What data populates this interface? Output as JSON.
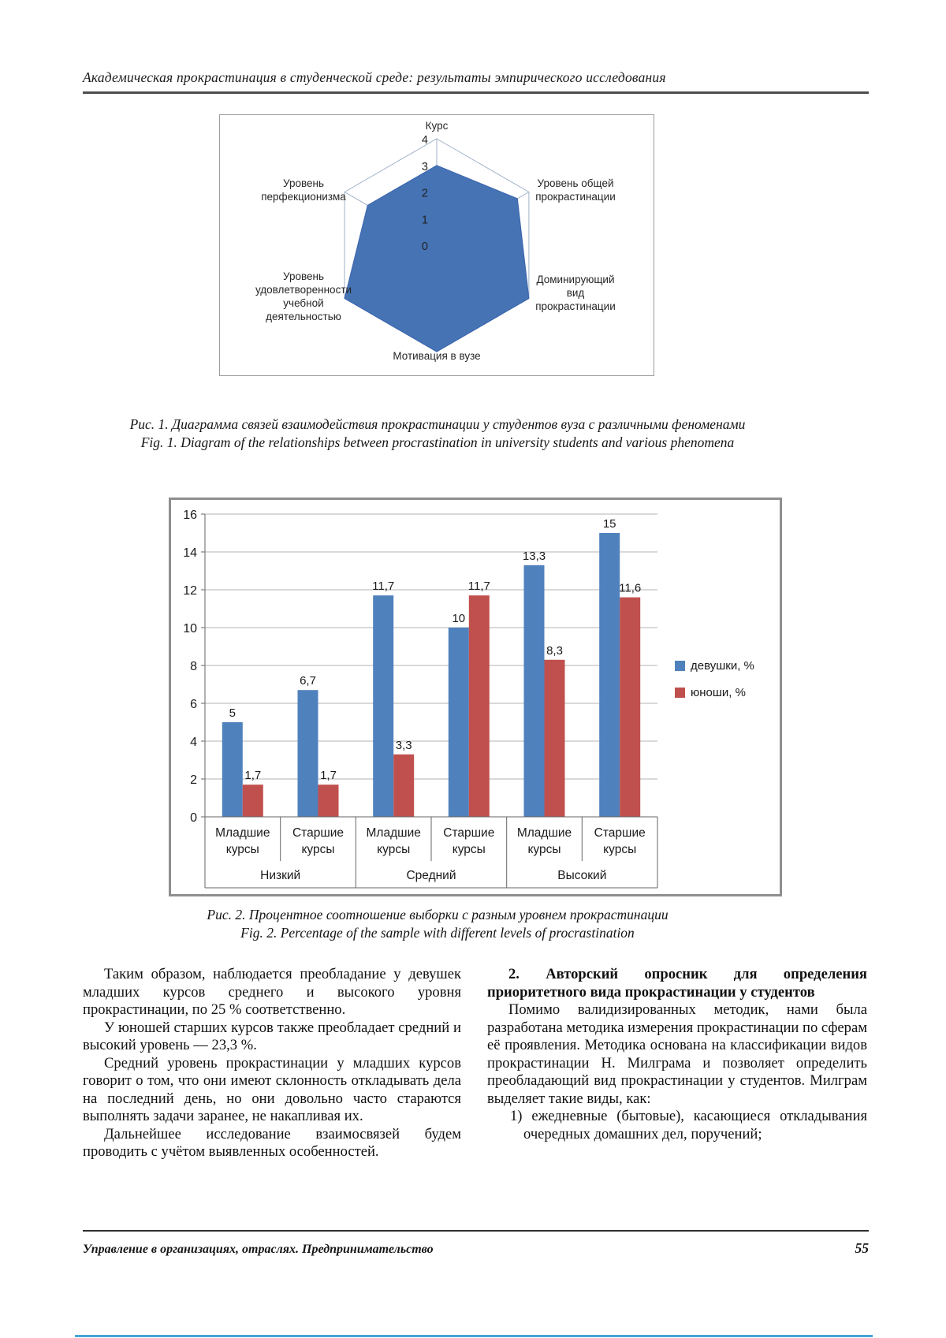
{
  "page": {
    "running_head": "Академическая прокрастинация в студенческой среде: результаты эмпирического исследования",
    "footer_left": "Управление в организациях, отраслях. Предпринимательство",
    "page_number": "55"
  },
  "fig1": {
    "caption_ru": "Рис. 1. Диаграмма связей взаимодействия прокрастинации у студентов вуза с различными феноменами",
    "caption_en": "Fig. 1. Diagram of the relationships between procrastination in university students and various phenomena"
  },
  "fig2": {
    "caption_ru": "Рис. 2. Процентное соотношение выборки с разным уровнем прокрастинации",
    "caption_en": "Fig. 2. Percentage of the sample with different levels of procrastination"
  },
  "body": {
    "left_paragraphs": [
      "Таким образом, наблюдается преобладание у девушек младших курсов среднего и высокого уровня прокрастинации, по 25 % соответственно.",
      "У юношей старших курсов также преобладает средний и высокий уровень — 23,3 %.",
      "Средний уровень прокрастинации у младших курсов говорит о том, что они имеют склонность откладывать дела на последний день, но они довольно часто стараются выполнять задачи заранее, не накапливая их.",
      "Дальнейшее исследование взаимосвязей будем проводить с учётом выявленных особенностей."
    ],
    "right_heading": "2. Авторский опросник для определения приоритетного вида прокрастинации у студентов",
    "right_paragraph": "Помимо валидизированных методик, нами была разработана методика измерения прокрастинации по сферам её проявления. Методика основана на классификации видов прокрастинации Н. Милграма и позволяет определить преобладающий вид прокрастинации у студентов. Милграм выделяет такие виды, как:",
    "right_list_item": "1) ежедневные (бытовые), касающиеся откладывания очередных домашних дел, поручений;"
  },
  "chart_data": [
    {
      "type": "radar",
      "axes": [
        "Курс",
        "Уровень общей прокрастинации",
        "Доминирующий вид прокрастинации",
        "Мотивация в вузе",
        "Уровень удовлетворенности учебной деятельностью",
        "Уровень перфекционизма"
      ],
      "values": [
        3,
        3.5,
        4,
        4,
        4,
        3
      ],
      "rmin": 0,
      "rmax": 4,
      "rticks": [
        0,
        1,
        2,
        3,
        4
      ],
      "fill_color": "#4573b4",
      "grid_color": "#9fb0c9"
    },
    {
      "type": "bar",
      "categories": [
        "Младшие курсы",
        "Старшие курсы",
        "Младшие курсы",
        "Старшие курсы",
        "Младшие курсы",
        "Старшие курсы"
      ],
      "group_labels": [
        "Низкий",
        "Средний",
        "Высокий"
      ],
      "series": [
        {
          "name": "девушки, %",
          "color": "#4F81BD",
          "values": [
            5,
            6.7,
            11.7,
            10,
            13.3,
            15
          ],
          "labels": [
            "5",
            "6,7",
            "11,7",
            "10",
            "13,3",
            "15"
          ]
        },
        {
          "name": "юноши, %",
          "color": "#C0504D",
          "values": [
            1.7,
            1.7,
            3.3,
            11.7,
            8.3,
            11.6
          ],
          "labels": [
            "1,7",
            "1,7",
            "3,3",
            "11,7",
            "8,3",
            "11,6"
          ]
        }
      ],
      "ylim": [
        0,
        16
      ],
      "ytick_step": 2,
      "grid": true,
      "legend_position": "right"
    }
  ]
}
